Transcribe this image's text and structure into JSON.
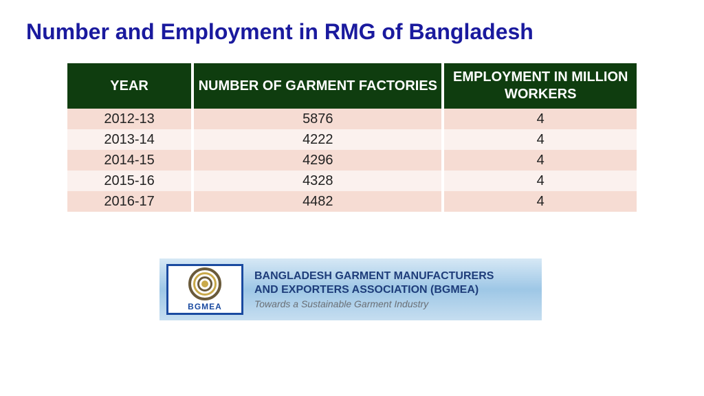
{
  "title": "Number and Employment in RMG of Bangladesh",
  "table": {
    "type": "table",
    "header_bg": "#0f3d0f",
    "header_color": "#ffffff",
    "row_odd_bg": "#f6dcd3",
    "row_even_bg": "#fbf1ee",
    "text_color": "#222222",
    "font_size": 20,
    "columns": [
      {
        "label": "YEAR",
        "width_pct": 22,
        "align": "center"
      },
      {
        "label": "NUMBER OF GARMENT FACTORIES",
        "width_pct": 44,
        "align": "center"
      },
      {
        "label": "EMPLOYMENT IN MILLION WORKERS",
        "width_pct": 34,
        "align": "center"
      }
    ],
    "rows": [
      [
        "2012-13",
        "5876",
        "4"
      ],
      [
        "2013-14",
        "4222",
        "4"
      ],
      [
        "2014-15",
        "4296",
        "4"
      ],
      [
        "2015-16",
        "4328",
        "4"
      ],
      [
        "2016-17",
        "4482",
        "4"
      ]
    ]
  },
  "banner": {
    "logo_acronym": "BGMEA",
    "org_line1": "BANGLADESH GARMENT MANUFACTURERS",
    "org_line2": "AND EXPORTERS ASSOCIATION (BGMEA)",
    "tagline": "Towards a Sustainable Garment Industry",
    "bg_gradient_top": "#d6e8f5",
    "bg_gradient_mid": "#9ec7e6",
    "bg_gradient_bot": "#c6def0",
    "logo_border": "#1a4aa0",
    "text_color": "#1e3d7a",
    "tagline_color": "#6a6f75"
  },
  "style": {
    "page_bg": "#ffffff",
    "title_color": "#1a1a9e",
    "title_fontsize": 32
  }
}
